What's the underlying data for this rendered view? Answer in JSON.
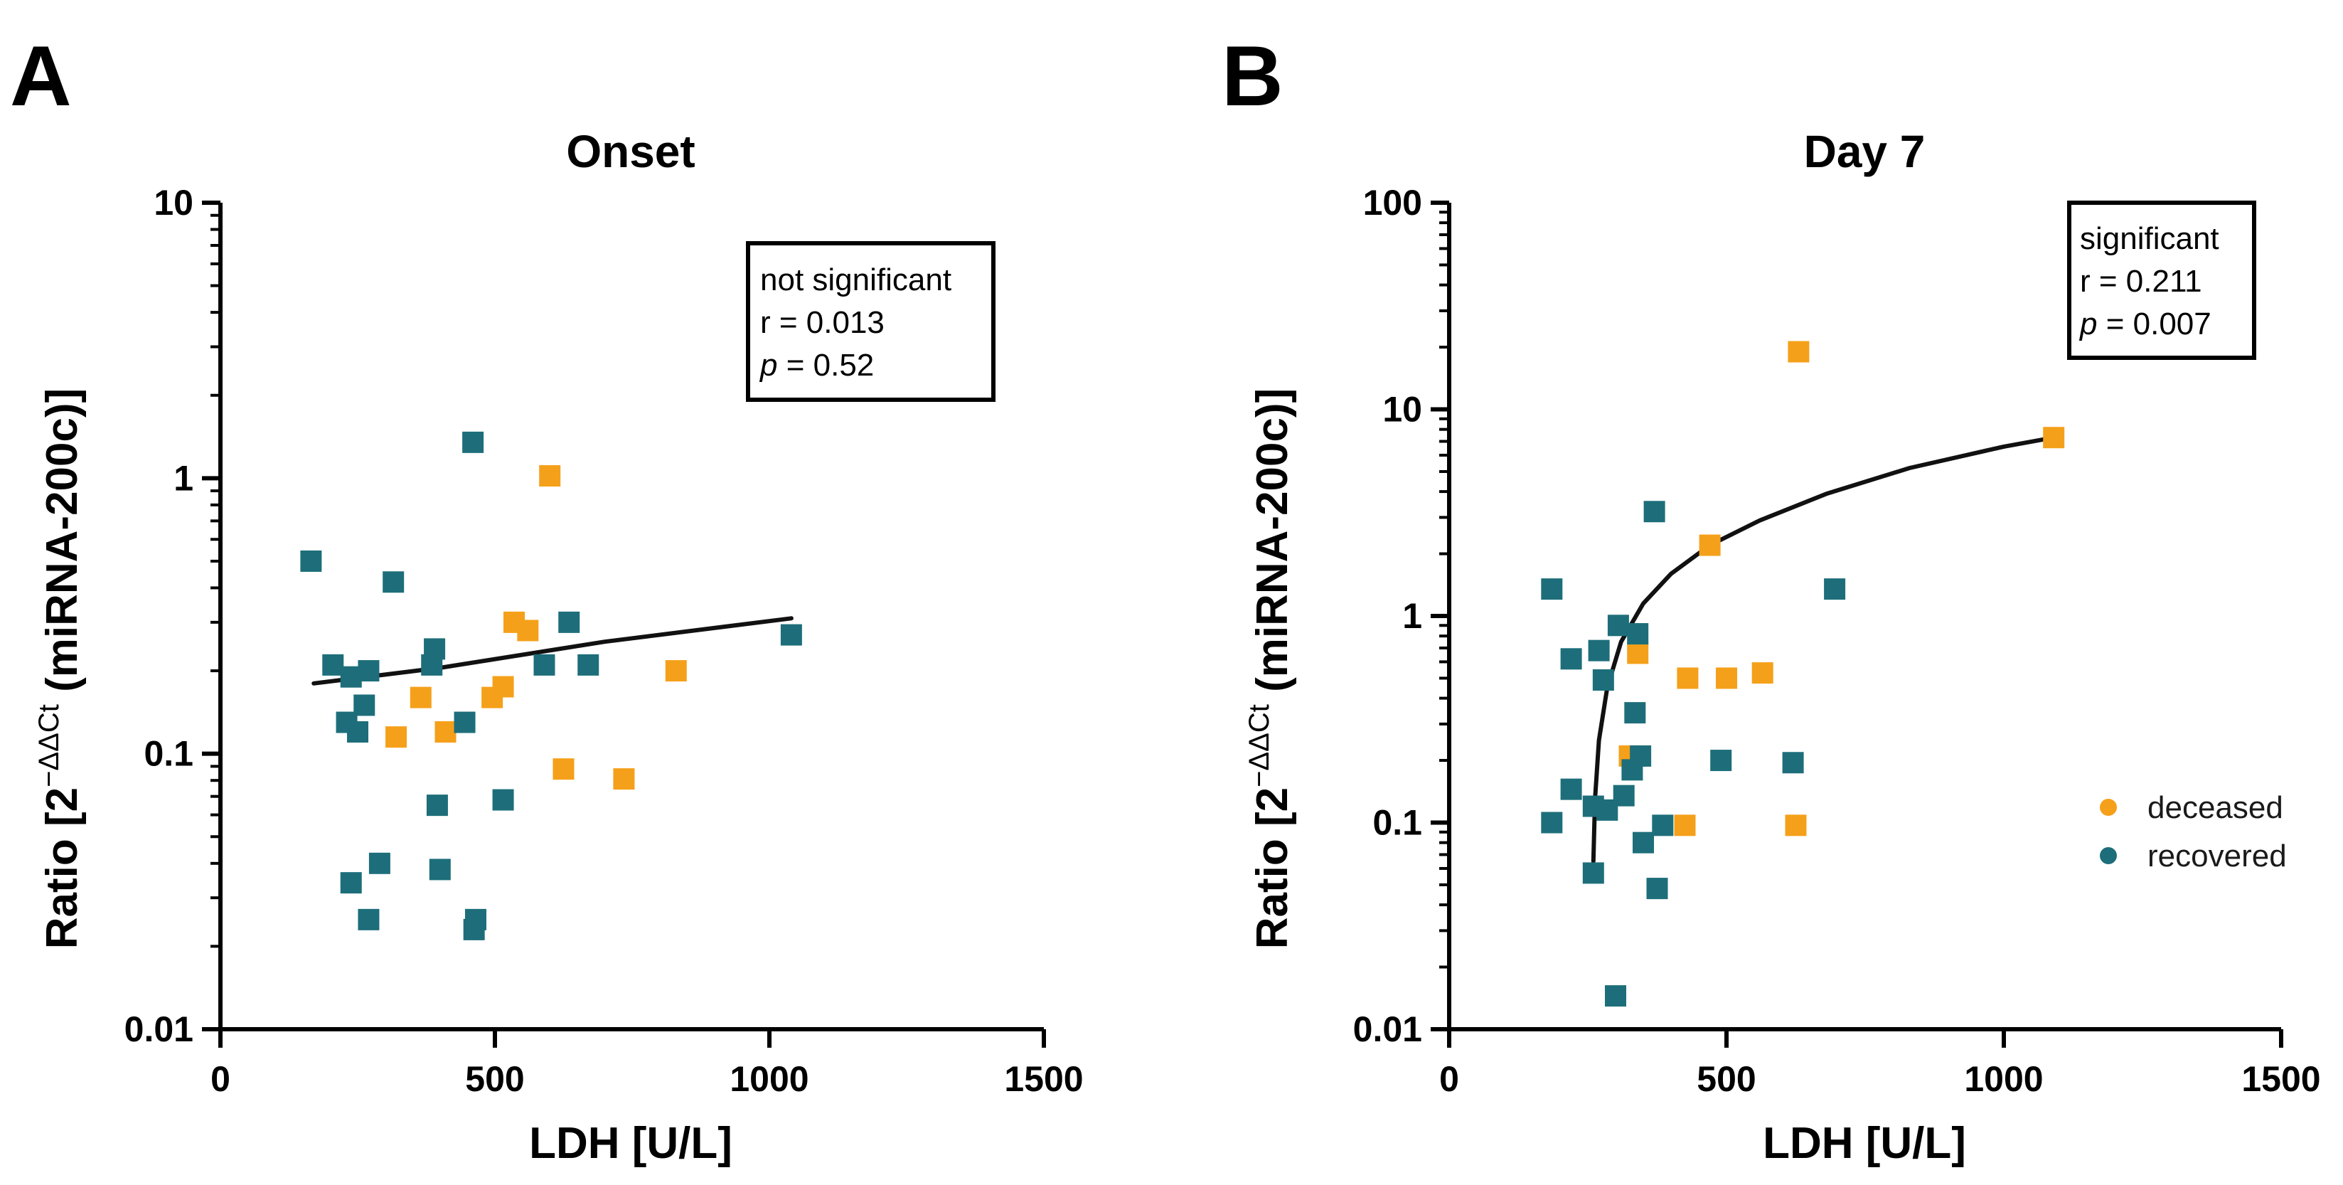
{
  "colors": {
    "deceased": "#f5a01a",
    "recovered": "#1d6e7a",
    "axis": "#000000"
  },
  "chart_data": [
    {
      "panel": "A",
      "type": "scatter",
      "title": "Onset",
      "xlabel": "LDH [U/L]",
      "ylabel_main": "Ratio [2",
      "ylabel_sup": "−ΔΔCt",
      "ylabel_end": " (miRNA-200c)]",
      "xlim": [
        0,
        1500
      ],
      "ylim": [
        0.01,
        10
      ],
      "yscale": "log",
      "xticks": [
        0,
        500,
        1000,
        1500
      ],
      "xtick_labels": [
        "0",
        "500",
        "1000",
        "1500"
      ],
      "yticks": [
        0.01,
        0.1,
        1,
        10
      ],
      "ytick_labels": [
        "0.01",
        "0.1",
        "1",
        "10"
      ],
      "stats": {
        "line1": "not significant",
        "r_text": "r = 0.013",
        "p_symbol": "p",
        "p_rest": " = 0.52"
      },
      "series": [
        {
          "name": "deceased",
          "points": [
            [
              365,
              0.16
            ],
            [
              320,
              0.115
            ],
            [
              410,
              0.12
            ],
            [
              495,
              0.16
            ],
            [
              515,
              0.175
            ],
            [
              535,
              0.3
            ],
            [
              560,
              0.28
            ],
            [
              600,
              1.02
            ],
            [
              625,
              0.088
            ],
            [
              735,
              0.081
            ],
            [
              830,
              0.2
            ]
          ]
        },
        {
          "name": "recovered",
          "points": [
            [
              165,
              0.5
            ],
            [
              205,
              0.21
            ],
            [
              230,
              0.13
            ],
            [
              238,
              0.19
            ],
            [
              250,
              0.12
            ],
            [
              262,
              0.15
            ],
            [
              270,
              0.2
            ],
            [
              238,
              0.034
            ],
            [
              270,
              0.025
            ],
            [
              290,
              0.04
            ],
            [
              315,
              0.42
            ],
            [
              385,
              0.21
            ],
            [
              390,
              0.24
            ],
            [
              395,
              0.065
            ],
            [
              400,
              0.038
            ],
            [
              445,
              0.13
            ],
            [
              460,
              1.35
            ],
            [
              465,
              0.025
            ],
            [
              462,
              0.023
            ],
            [
              515,
              0.068
            ],
            [
              590,
              0.21
            ],
            [
              635,
              0.3
            ],
            [
              670,
              0.21
            ],
            [
              1040,
              0.27
            ]
          ]
        }
      ],
      "fit": {
        "type": "loglinear",
        "points": [
          [
            170,
            0.18
          ],
          [
            400,
            0.205
          ],
          [
            700,
            0.255
          ],
          [
            1040,
            0.31
          ]
        ]
      }
    },
    {
      "panel": "B",
      "type": "scatter",
      "title": "Day 7",
      "xlabel": "LDH [U/L]",
      "ylabel_main": "Ratio [2",
      "ylabel_sup": "−ΔΔCt",
      "ylabel_end": " (miRNA-200c)]",
      "xlim": [
        0,
        1500
      ],
      "ylim": [
        0.01,
        100
      ],
      "yscale": "log",
      "xticks": [
        0,
        500,
        1000,
        1500
      ],
      "xtick_labels": [
        "0",
        "500",
        "1000",
        "1500"
      ],
      "yticks": [
        0.01,
        0.1,
        1,
        10,
        100
      ],
      "ytick_labels": [
        "0.01",
        "0.1",
        "1",
        "10",
        "100"
      ],
      "stats": {
        "line1": "significant",
        "r_text": "r = 0.211",
        "p_symbol": "p",
        "p_rest": " = 0.007"
      },
      "legend": [
        {
          "name": "deceased",
          "label": "deceased"
        },
        {
          "name": "recovered",
          "label": "recovered"
        }
      ],
      "series": [
        {
          "name": "deceased",
          "points": [
            [
              325,
              0.21
            ],
            [
              340,
              0.66
            ],
            [
              425,
              0.097
            ],
            [
              430,
              0.5
            ],
            [
              470,
              2.2
            ],
            [
              500,
              0.5
            ],
            [
              565,
              0.53
            ],
            [
              625,
              0.097
            ],
            [
              630,
              19
            ],
            [
              1090,
              7.3
            ]
          ]
        },
        {
          "name": "recovered",
          "points": [
            [
              185,
              1.35
            ],
            [
              185,
              0.1
            ],
            [
              220,
              0.62
            ],
            [
              220,
              0.145
            ],
            [
              260,
              0.057
            ],
            [
              260,
              0.12
            ],
            [
              270,
              0.68
            ],
            [
              278,
              0.49
            ],
            [
              285,
              0.115
            ],
            [
              305,
              0.9
            ],
            [
              300,
              0.0145
            ],
            [
              315,
              0.135
            ],
            [
              330,
              0.18
            ],
            [
              335,
              0.34
            ],
            [
              340,
              0.82
            ],
            [
              345,
              0.21
            ],
            [
              350,
              0.08
            ],
            [
              370,
              3.2
            ],
            [
              375,
              0.048
            ],
            [
              385,
              0.097
            ],
            [
              490,
              0.2
            ],
            [
              620,
              0.195
            ],
            [
              695,
              1.35
            ]
          ]
        }
      ],
      "fit": {
        "type": "curve",
        "points": [
          [
            260,
            0.065
          ],
          [
            263,
            0.13
          ],
          [
            270,
            0.25
          ],
          [
            285,
            0.45
          ],
          [
            310,
            0.75
          ],
          [
            350,
            1.15
          ],
          [
            400,
            1.6
          ],
          [
            470,
            2.2
          ],
          [
            560,
            2.9
          ],
          [
            680,
            3.9
          ],
          [
            830,
            5.2
          ],
          [
            1000,
            6.6
          ],
          [
            1090,
            7.3
          ]
        ]
      }
    }
  ]
}
